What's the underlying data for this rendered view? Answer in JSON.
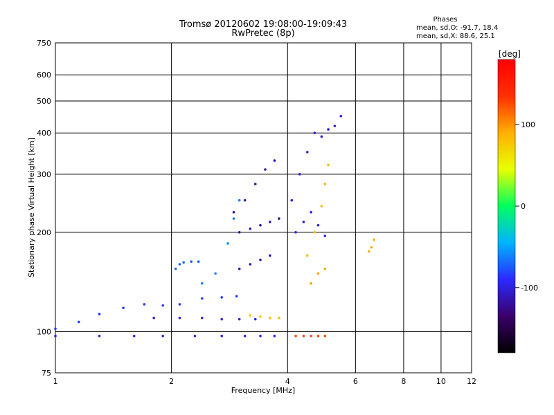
{
  "chart_data": {
    "type": "scatter",
    "title": "Tromsø 20120602 19:08:00-19:09:43",
    "subtitle": "RwPretec (8p)",
    "xlabel": "Frequency [MHz]",
    "ylabel": "Stationary phase Virtual Height [km]",
    "xscale": "log",
    "yscale": "log",
    "xlim": [
      1,
      12
    ],
    "ylim": [
      75,
      750
    ],
    "grid": true,
    "x_ticks": [
      1,
      2,
      4,
      6,
      8,
      10,
      12
    ],
    "y_ticks": [
      75,
      100,
      200,
      300,
      400,
      500,
      600,
      750
    ],
    "phases_box": {
      "title": "Phases",
      "line1": "mean, sd,O: -91.7, 18.4",
      "line2": "mean, sd,X:  88.6, 25.1"
    },
    "colorbar": {
      "label": "[deg]",
      "range": [
        -180,
        180
      ],
      "ticks": [
        100,
        0,
        -100
      ],
      "colors": [
        "#000000",
        "#3a006a",
        "#2a2aff",
        "#00b4ff",
        "#00ff60",
        "#e8ff00",
        "#ffb000",
        "#ff3000",
        "#ff0000"
      ]
    },
    "series": [
      {
        "x": [
          1.0,
          1.3,
          1.6,
          1.9,
          2.3,
          2.7,
          3.1,
          3.4,
          3.7
        ],
        "y": [
          97,
          97,
          97,
          97,
          97,
          97,
          97,
          97,
          97
        ],
        "phase": -95
      },
      {
        "x": [
          1.0,
          1.15,
          1.3,
          1.5,
          1.7,
          1.9,
          2.1,
          2.4,
          2.7,
          2.95
        ],
        "y": [
          102,
          107,
          113,
          118,
          121,
          120,
          121,
          126,
          127,
          128
        ],
        "phase": -85
      },
      {
        "x": [
          1.8,
          2.1,
          2.4,
          2.7,
          3.0,
          3.3,
          3.6,
          3.8
        ],
        "y": [
          110,
          110,
          110,
          109,
          109,
          109,
          110,
          110
        ],
        "phase": -100
      },
      {
        "x": [
          3.2,
          3.4,
          3.6,
          3.8
        ],
        "y": [
          112,
          111,
          110,
          110
        ],
        "phase": 75
      },
      {
        "x": [
          2.05,
          2.1,
          2.15,
          2.25,
          2.35
        ],
        "y": [
          155,
          160,
          162,
          163,
          163
        ],
        "phase": -70
      },
      {
        "x": [
          2.4,
          2.6,
          2.8,
          2.9,
          3.0
        ],
        "y": [
          140,
          150,
          185,
          220,
          250
        ],
        "phase": -60
      },
      {
        "x": [
          3.0,
          3.2,
          3.4,
          3.6,
          3.8
        ],
        "y": [
          200,
          205,
          210,
          215,
          220
        ],
        "phase": -115
      },
      {
        "x": [
          3.0,
          3.2,
          3.4,
          3.6
        ],
        "y": [
          155,
          160,
          165,
          170
        ],
        "phase": -115
      },
      {
        "x": [
          2.9,
          3.1,
          3.3,
          3.5,
          3.7
        ],
        "y": [
          230,
          250,
          280,
          310,
          330
        ],
        "phase": -110
      },
      {
        "x": [
          4.1,
          4.3,
          4.5,
          4.7,
          4.9,
          5.1,
          5.3,
          5.5
        ],
        "y": [
          250,
          300,
          350,
          400,
          390,
          410,
          420,
          450
        ],
        "phase": -100
      },
      {
        "x": [
          4.2,
          4.4,
          4.6,
          4.8,
          5.0
        ],
        "y": [
          200,
          215,
          230,
          210,
          195
        ],
        "phase": -95
      },
      {
        "x": [
          4.5,
          4.7,
          4.9,
          5.0,
          5.1
        ],
        "y": [
          170,
          200,
          240,
          280,
          320
        ],
        "phase": 85
      },
      {
        "x": [
          4.6,
          4.8,
          5.0
        ],
        "y": [
          140,
          150,
          155
        ],
        "phase": 95
      },
      {
        "x": [
          4.2,
          4.4,
          4.6,
          4.8,
          5.0
        ],
        "y": [
          97,
          97,
          97,
          97,
          97
        ],
        "phase": 125
      },
      {
        "x": [
          6.5,
          6.6,
          6.7
        ],
        "y": [
          175,
          180,
          190
        ],
        "phase": 90
      }
    ]
  }
}
